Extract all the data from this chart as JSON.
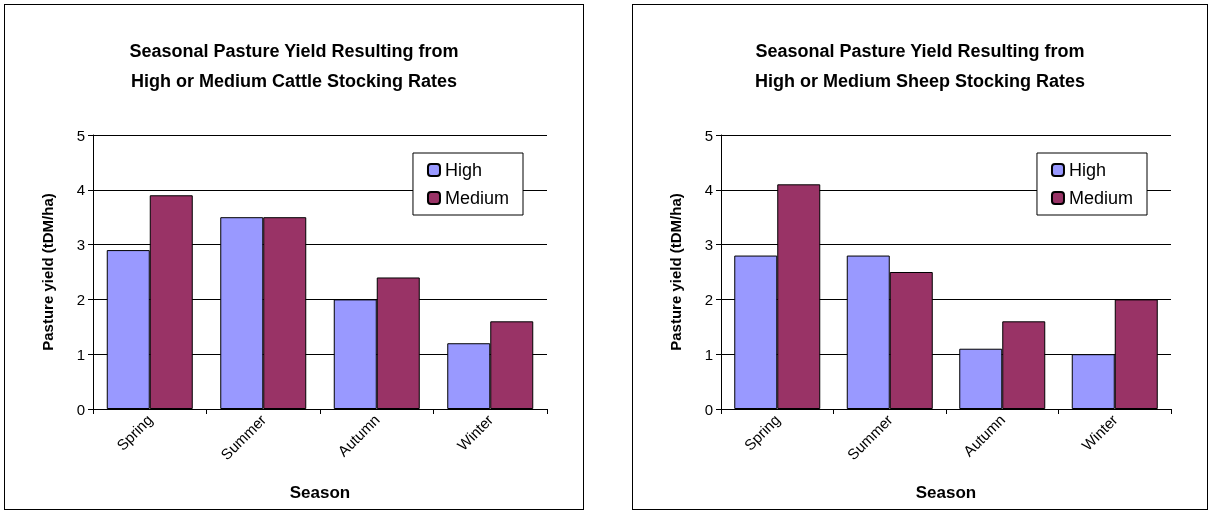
{
  "chart_data": [
    {
      "type": "bar",
      "title": "Seasonal Pasture Yield Resulting from\nHigh or Medium Cattle Stocking Rates",
      "xlabel": "Season",
      "ylabel": "Pasture yield (tDM/ha)",
      "categories": [
        "Spring",
        "Summer",
        "Autumn",
        "Winter"
      ],
      "series": [
        {
          "name": "High",
          "color": "#9999ff",
          "values": [
            2.9,
            3.5,
            2.0,
            1.2
          ]
        },
        {
          "name": "Medium",
          "color": "#993366",
          "values": [
            3.9,
            3.5,
            2.4,
            1.6
          ]
        }
      ],
      "ylim": [
        0,
        5
      ],
      "yticks": [
        0,
        1,
        2,
        3,
        4,
        5
      ],
      "grid": "y",
      "legend": "top right"
    },
    {
      "type": "bar",
      "title": "Seasonal Pasture Yield Resulting from\nHigh or Medium Sheep Stocking Rates",
      "xlabel": "Season",
      "ylabel": "Pasture yield (tDM/ha)",
      "categories": [
        "Spring",
        "Summer",
        "Autumn",
        "Winter"
      ],
      "series": [
        {
          "name": "High",
          "color": "#9999ff",
          "values": [
            2.8,
            2.8,
            1.1,
            1.0
          ]
        },
        {
          "name": "Medium",
          "color": "#993366",
          "values": [
            4.1,
            2.5,
            1.6,
            2.0
          ]
        }
      ],
      "ylim": [
        0,
        5
      ],
      "yticks": [
        0,
        1,
        2,
        3,
        4,
        5
      ],
      "grid": "y",
      "legend": "top right"
    }
  ]
}
